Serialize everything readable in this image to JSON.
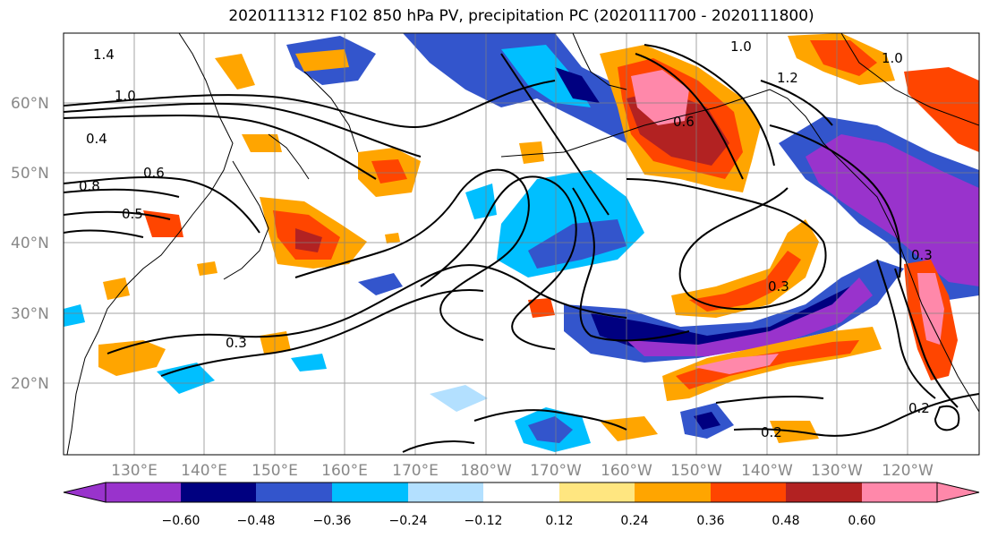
{
  "title": "2020111312 F102 850 hPa PV, precipitation PC (2020111700 - 2020111800)",
  "map": {
    "lat_labels": [
      "60°N",
      "50°N",
      "40°N",
      "30°N",
      "20°N"
    ],
    "lon_labels": [
      "130°E",
      "140°E",
      "150°E",
      "160°E",
      "170°E",
      "180°W",
      "170°W",
      "160°W",
      "150°W",
      "140°W",
      "130°W",
      "120°W"
    ],
    "contour_labels": [
      "1.4",
      "1.2",
      "1.0",
      "0.8",
      "0.6",
      "0.5",
      "0.4",
      "0.3",
      "0.2"
    ],
    "colors": {
      "neg_060": "#9933cc",
      "neg_048": "#000080",
      "neg_036": "#3355cc",
      "neg_024": "#00bfff",
      "neg_012": "#b3e0ff",
      "zero": "#ffffff",
      "pos_012": "#ffe680",
      "pos_024": "#ffa500",
      "pos_036": "#ff4500",
      "pos_048": "#b22222",
      "pos_060": "#ff88aa"
    }
  },
  "colorbar": {
    "ticks": [
      "−0.60",
      "−0.48",
      "−0.36",
      "−0.24",
      "−0.12",
      "0.12",
      "0.24",
      "0.36",
      "0.48",
      "0.60"
    ]
  }
}
